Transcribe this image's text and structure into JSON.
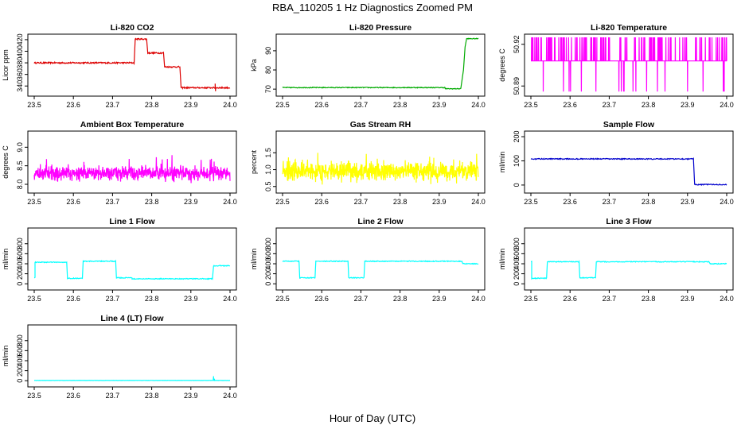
{
  "title": "RBA_110205  1 Hz Diagnostics Zoomed PM",
  "xlabel": "Hour of Day (UTC)",
  "chart_data": [
    {
      "type": "line",
      "title": "Li-820 CO2",
      "ylabel": "Licor ppm",
      "color": "#dd0000",
      "xlim": [
        23.5,
        24.0
      ],
      "ylim": [
        328,
        424
      ],
      "xticks": [
        23.5,
        23.6,
        23.7,
        23.8,
        23.9,
        24.0
      ],
      "xtick_labels": [
        "23.5",
        "23.6",
        "23.7",
        "23.8",
        "23.9",
        "24.0"
      ],
      "yticks": [
        340,
        360,
        380,
        400,
        420
      ],
      "ytick_labels": [
        "340",
        "360",
        "380",
        "400",
        "420"
      ],
      "segments": [
        [
          23.5,
          23.755,
          380
        ],
        [
          23.758,
          23.787,
          421
        ],
        [
          23.79,
          23.83,
          397
        ],
        [
          23.833,
          23.872,
          373
        ],
        [
          23.875,
          24.0,
          337
        ]
      ],
      "noise": 1.2,
      "spikes": [
        [
          23.962,
          344
        ],
        [
          23.963,
          331
        ]
      ]
    },
    {
      "type": "line",
      "title": "Li-820 Pressure",
      "ylabel": "kPa",
      "color": "#00aa00",
      "xlim": [
        23.5,
        24.0
      ],
      "ylim": [
        68,
        97
      ],
      "xticks": [
        23.5,
        23.6,
        23.7,
        23.8,
        23.9,
        24.0
      ],
      "xtick_labels": [
        "23.5",
        "23.6",
        "23.7",
        "23.8",
        "23.9",
        "24.0"
      ],
      "yticks": [
        70,
        80,
        90
      ],
      "ytick_labels": [
        "70",
        "80",
        "90"
      ],
      "segments": [
        [
          23.5,
          23.915,
          70.8
        ],
        [
          23.915,
          23.955,
          70.2
        ],
        [
          23.97,
          24.0,
          96.3
        ]
      ],
      "ramp": [
        [
          23.955,
          70.2
        ],
        [
          23.962,
          80
        ],
        [
          23.966,
          92
        ],
        [
          23.97,
          96.3
        ]
      ],
      "noise": 0.2
    },
    {
      "type": "line",
      "title": "Li-820 Temperature",
      "ylabel": "degrees C",
      "color": "#ff00ff",
      "xlim": [
        23.5,
        24.0
      ],
      "ylim": [
        50.885,
        50.925
      ],
      "xticks": [
        23.5,
        23.6,
        23.7,
        23.8,
        23.9,
        24.0
      ],
      "xtick_labels": [
        "23.5",
        "23.6",
        "23.7",
        "23.8",
        "23.9",
        "24.0"
      ],
      "yticks": [
        50.89,
        50.92
      ],
      "ytick_labels": [
        "50.89",
        "50.92"
      ],
      "levels": [
        50.886,
        50.908,
        50.925
      ],
      "base_level": 50.908,
      "noise": 0
    },
    {
      "type": "line",
      "title": "Ambient Box Temperature",
      "ylabel": "degrees C",
      "color": "#ff00ff",
      "xlim": [
        23.5,
        24.0
      ],
      "ylim": [
        7.85,
        9.35
      ],
      "xticks": [
        23.5,
        23.6,
        23.7,
        23.8,
        23.9,
        24.0
      ],
      "xtick_labels": [
        "23.5",
        "23.6",
        "23.7",
        "23.8",
        "23.9",
        "24.0"
      ],
      "yticks": [
        8.0,
        8.5,
        9.0
      ],
      "ytick_labels": [
        "8.0",
        "8.5",
        "9.0"
      ],
      "center": 8.3,
      "noise": 0.28
    },
    {
      "type": "line",
      "title": "Gas Stream RH",
      "ylabel": "percent",
      "color": "#ffff00",
      "xlim": [
        23.5,
        24.0
      ],
      "ylim": [
        0.4,
        2.05
      ],
      "xticks": [
        23.5,
        23.6,
        23.7,
        23.8,
        23.9,
        24.0
      ],
      "xtick_labels": [
        "23.5",
        "23.6",
        "23.7",
        "23.8",
        "23.9",
        "24.0"
      ],
      "yticks": [
        0.5,
        1.0,
        1.5
      ],
      "ytick_labels": [
        "0.5",
        "1.0",
        "1.5"
      ],
      "center": 0.95,
      "noise": 0.4
    },
    {
      "type": "line",
      "title": "Sample Flow",
      "ylabel": "ml/min",
      "color": "#0000cc",
      "xlim": [
        23.5,
        24.0
      ],
      "ylim": [
        -20,
        210
      ],
      "xticks": [
        23.5,
        23.6,
        23.7,
        23.8,
        23.9,
        24.0
      ],
      "xtick_labels": [
        "23.5",
        "23.6",
        "23.7",
        "23.8",
        "23.9",
        "24.0"
      ],
      "yticks": [
        0,
        100,
        200
      ],
      "ytick_labels": [
        "0",
        "100",
        "200"
      ],
      "segments": [
        [
          23.5,
          23.915,
          108
        ],
        [
          23.918,
          24.0,
          2
        ]
      ],
      "noise": 2
    },
    {
      "type": "line",
      "title": "Line 1 Flow",
      "ylabel": "ml/min",
      "color": "#00ffff",
      "xlim": [
        23.5,
        24.0
      ],
      "ylim": [
        -60,
        1050
      ],
      "xticks": [
        23.5,
        23.6,
        23.7,
        23.8,
        23.9,
        24.0
      ],
      "xtick_labels": [
        "23.5",
        "23.6",
        "23.7",
        "23.8",
        "23.9",
        "24.0"
      ],
      "yticks": [
        0,
        200,
        400,
        600,
        800
      ],
      "ytick_labels": [
        "0",
        "200",
        "400",
        "600",
        "800"
      ],
      "segments": [
        [
          23.5,
          23.502,
          120
        ],
        [
          23.502,
          23.583,
          430
        ],
        [
          23.585,
          23.623,
          110
        ],
        [
          23.625,
          23.708,
          450
        ],
        [
          23.71,
          23.75,
          120
        ],
        [
          23.75,
          23.955,
          100
        ],
        [
          23.958,
          24.0,
          360
        ]
      ],
      "noise": 8
    },
    {
      "type": "line",
      "title": "Line 2 Flow",
      "ylabel": "ml/min",
      "color": "#00ffff",
      "xlim": [
        23.5,
        24.0
      ],
      "ylim": [
        -60,
        1050
      ],
      "xticks": [
        23.5,
        23.6,
        23.7,
        23.8,
        23.9,
        24.0
      ],
      "xtick_labels": [
        "23.5",
        "23.6",
        "23.7",
        "23.8",
        "23.9",
        "24.0"
      ],
      "yticks": [
        0,
        200,
        400,
        600,
        800
      ],
      "ytick_labels": [
        "0",
        "200",
        "400",
        "600",
        "800"
      ],
      "segments": [
        [
          23.5,
          23.542,
          450
        ],
        [
          23.544,
          23.583,
          120
        ],
        [
          23.585,
          23.667,
          450
        ],
        [
          23.669,
          23.708,
          120
        ],
        [
          23.71,
          23.958,
          450
        ],
        [
          23.96,
          24.0,
          400
        ]
      ],
      "noise": 8
    },
    {
      "type": "line",
      "title": "Line 3 Flow",
      "ylabel": "ml/min",
      "color": "#00ffff",
      "xlim": [
        23.5,
        24.0
      ],
      "ylim": [
        -60,
        1050
      ],
      "xticks": [
        23.5,
        23.6,
        23.7,
        23.8,
        23.9,
        24.0
      ],
      "xtick_labels": [
        "23.5",
        "23.6",
        "23.7",
        "23.8",
        "23.9",
        "24.0"
      ],
      "yticks": [
        0,
        200,
        400,
        600,
        800
      ],
      "ytick_labels": [
        "0",
        "200",
        "400",
        "600",
        "800"
      ],
      "segments": [
        [
          23.5,
          23.502,
          440
        ],
        [
          23.502,
          23.54,
          110
        ],
        [
          23.542,
          23.623,
          440
        ],
        [
          23.625,
          23.665,
          120
        ],
        [
          23.667,
          23.955,
          440
        ],
        [
          23.958,
          24.0,
          400
        ]
      ],
      "noise": 8
    },
    {
      "type": "line",
      "title": "Line 4 (LT) Flow",
      "ylabel": "ml/min",
      "color": "#00ffff",
      "xlim": [
        23.5,
        24.0
      ],
      "ylim": [
        -60,
        1050
      ],
      "xticks": [
        23.5,
        23.6,
        23.7,
        23.8,
        23.9,
        24.0
      ],
      "xtick_labels": [
        "23.5",
        "23.6",
        "23.7",
        "23.8",
        "23.9",
        "24.0"
      ],
      "yticks": [
        0,
        200,
        400,
        600,
        800
      ],
      "ytick_labels": [
        "0",
        "200",
        "400",
        "600",
        "800"
      ],
      "segments": [
        [
          23.5,
          24.0,
          5
        ]
      ],
      "noise": 2,
      "spikes": [
        [
          23.958,
          90
        ],
        [
          23.96,
          40
        ]
      ]
    }
  ]
}
